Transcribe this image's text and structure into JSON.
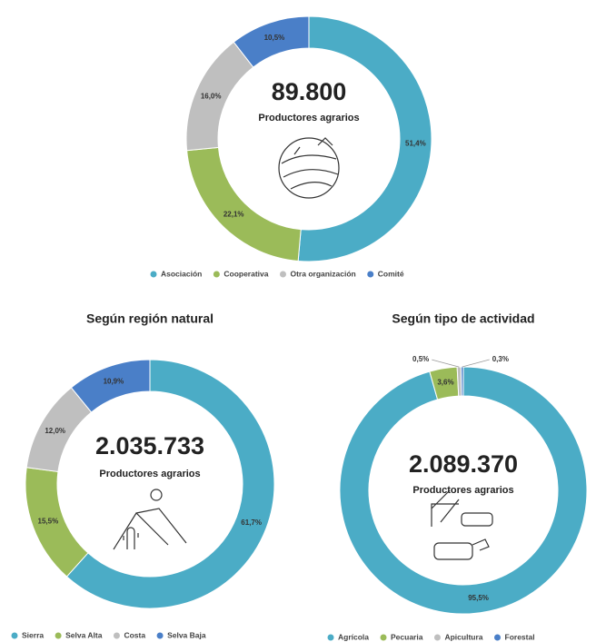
{
  "chart_data": [
    {
      "type": "pie",
      "center_value": "89.800",
      "center_label": "Productores agrarios",
      "categories": [
        "Asociación",
        "Cooperativa",
        "Otra organización",
        "Comité"
      ],
      "values": [
        51.4,
        22.1,
        16.0,
        10.5
      ],
      "value_labels": [
        "51,4%",
        "22,1%",
        "16,0%",
        "10,5%"
      ],
      "colors": [
        "#4bacc6",
        "#9bbb59",
        "#bfbfbf",
        "#4a7fc8"
      ]
    },
    {
      "type": "pie",
      "title": "Según región natural",
      "center_value": "2.035.733",
      "center_label": "Productores agrarios",
      "categories": [
        "Sierra",
        "Selva Alta",
        "Costa",
        "Selva Baja"
      ],
      "values": [
        61.7,
        15.5,
        12.0,
        10.9
      ],
      "value_labels": [
        "61,7%",
        "15,5%",
        "12,0%",
        "10,9%"
      ],
      "colors": [
        "#4bacc6",
        "#9bbb59",
        "#bfbfbf",
        "#4a7fc8"
      ]
    },
    {
      "type": "pie",
      "title": "Según tipo de actividad",
      "center_value": "2.089.370",
      "center_label": "Productores agrarios",
      "categories": [
        "Agrícola",
        "Pecuaria",
        "Apicultura",
        "Forestal"
      ],
      "values": [
        95.5,
        3.6,
        0.5,
        0.3
      ],
      "value_labels": [
        "95,5%",
        "3,6%",
        "0,5%",
        "0,3%"
      ],
      "colors": [
        "#4bacc6",
        "#9bbb59",
        "#bfbfbf",
        "#4a7fc8"
      ]
    }
  ]
}
